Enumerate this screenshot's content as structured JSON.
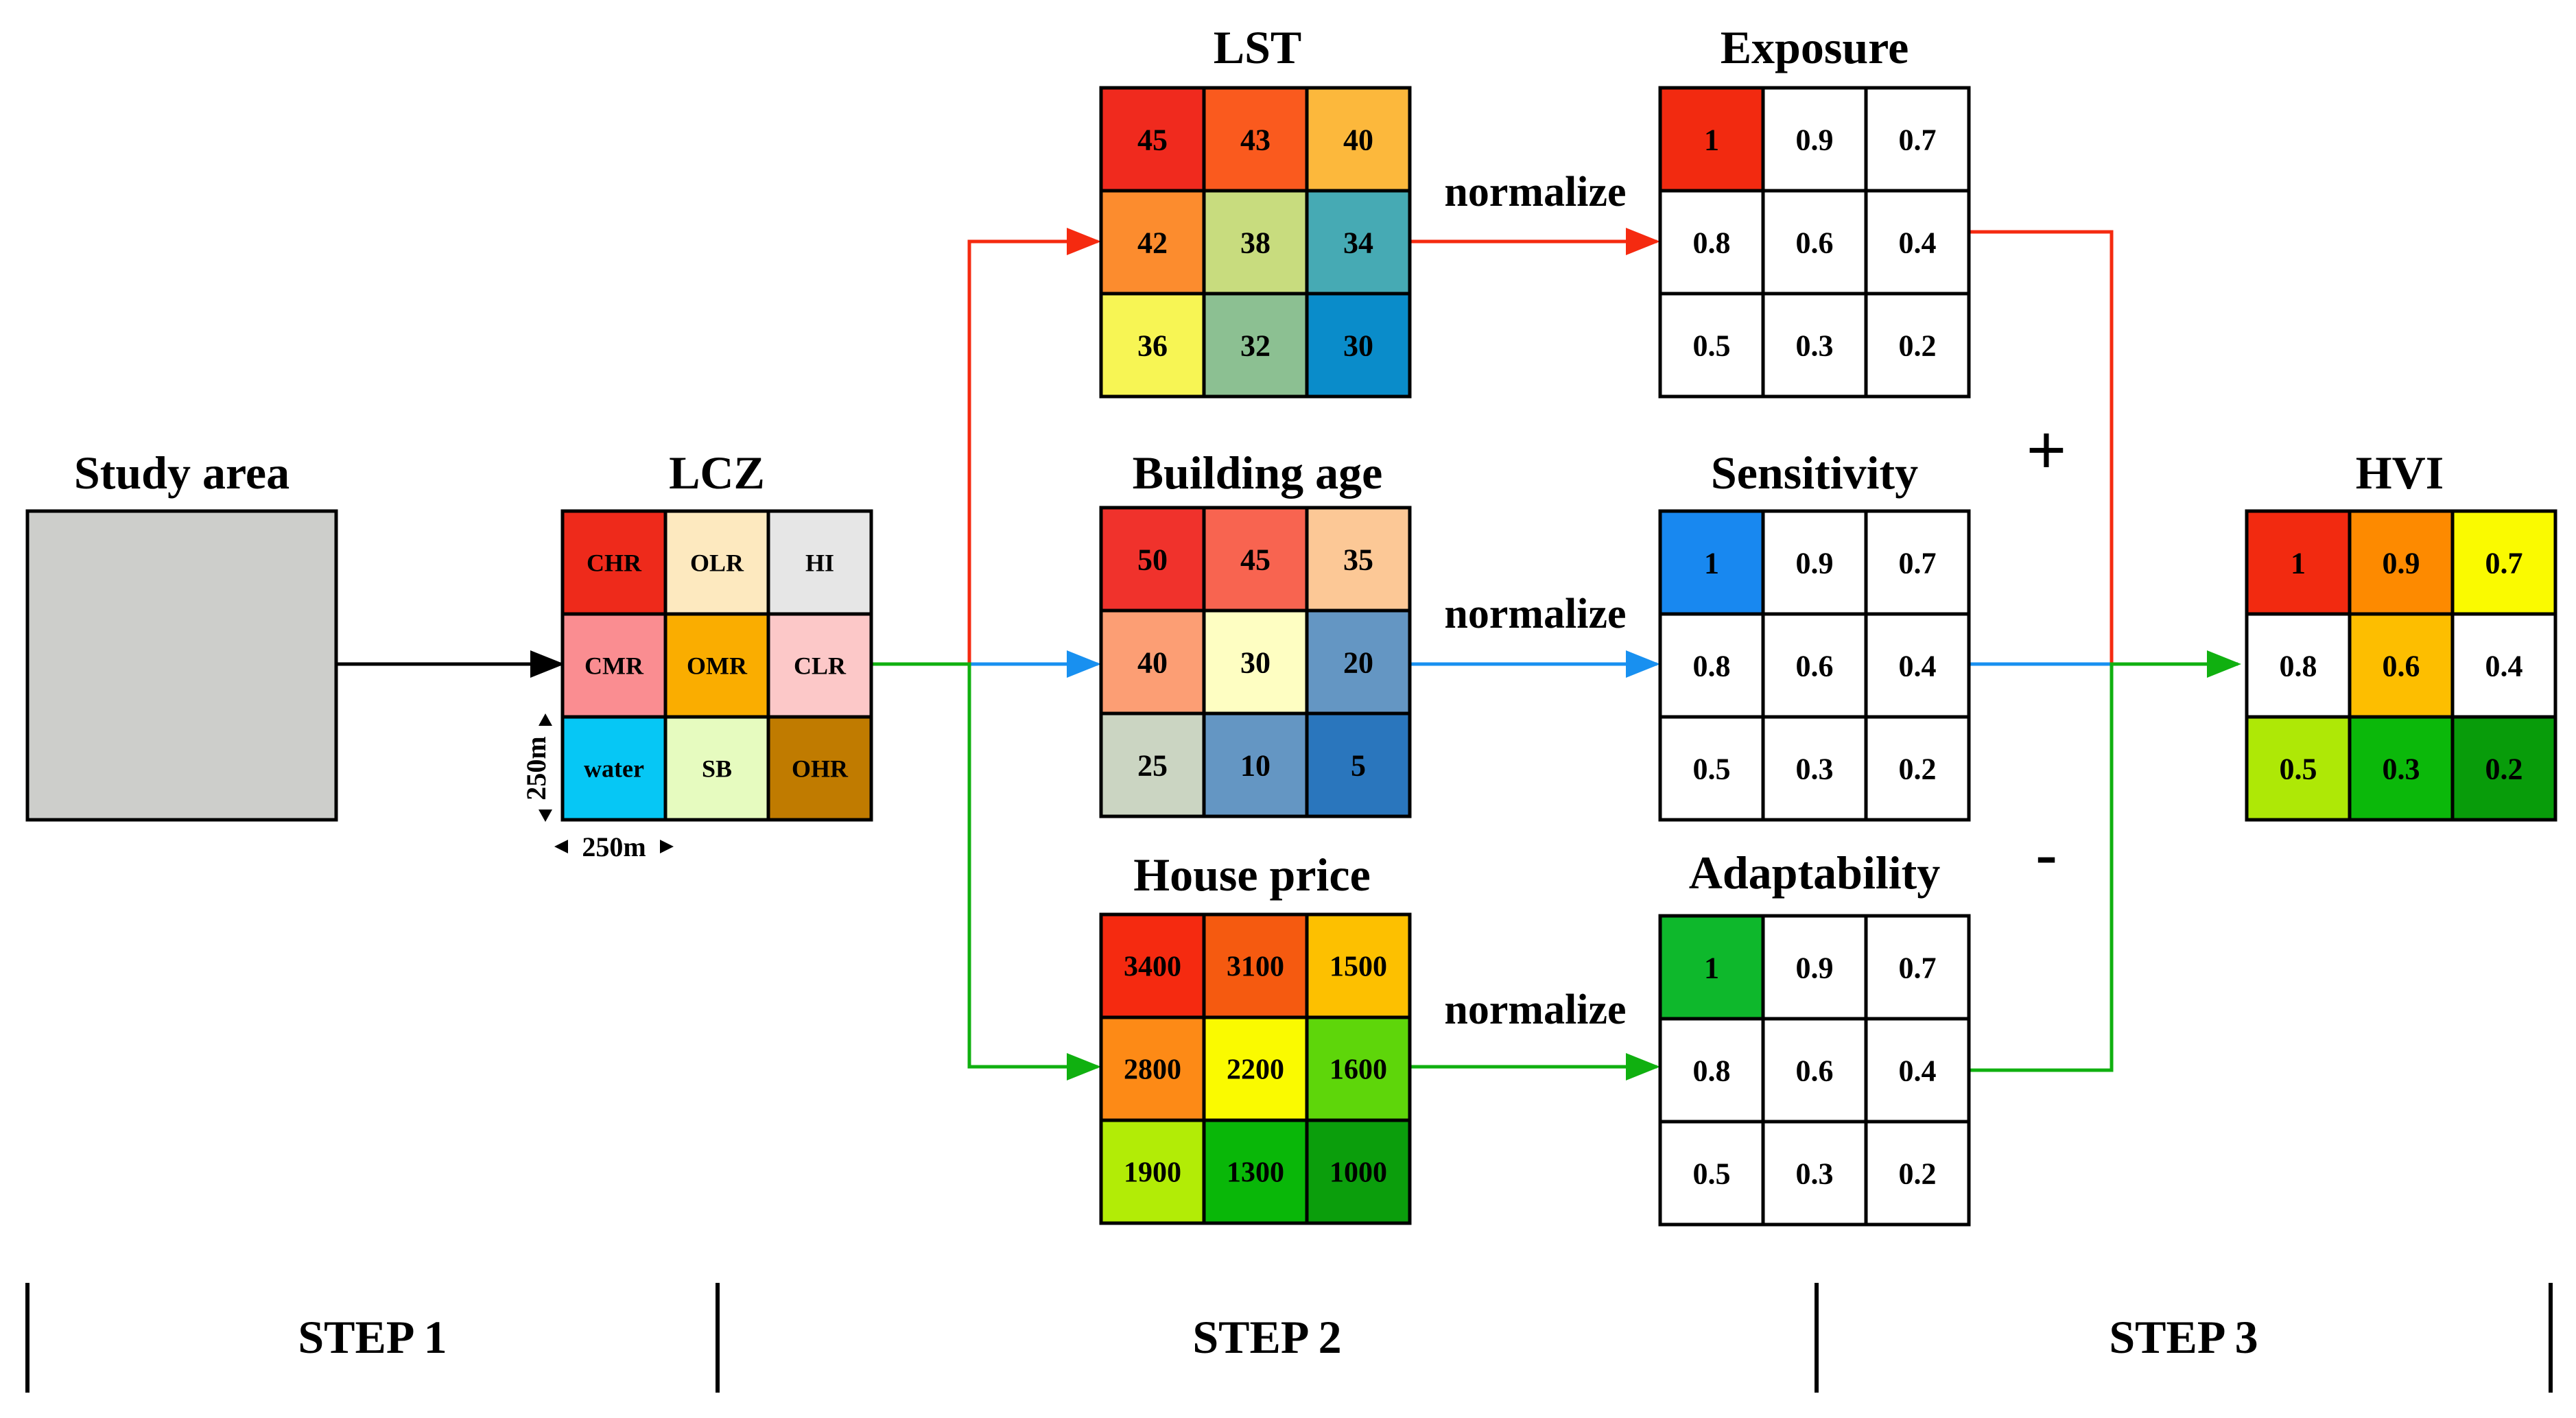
{
  "study_area": {
    "title": "Study area",
    "fill": "#cdcecb"
  },
  "lcz": {
    "title": "LCZ",
    "cells": [
      [
        "CHR",
        "OLR",
        "HI"
      ],
      [
        "CMR",
        "OMR",
        "CLR"
      ],
      [
        "water",
        "SB",
        "OHR"
      ]
    ],
    "colors": [
      [
        "#ee2a1b",
        "#fde9bf",
        "#e6e6e6"
      ],
      [
        "#fa8d91",
        "#faad00",
        "#fcc8c8"
      ],
      [
        "#06c7f5",
        "#e6fbbf",
        "#c07b00"
      ]
    ],
    "dim_vertical": "250m",
    "dim_horizontal": "250m"
  },
  "lst": {
    "title": "LST",
    "cells": [
      [
        "45",
        "43",
        "40"
      ],
      [
        "42",
        "38",
        "34"
      ],
      [
        "36",
        "32",
        "30"
      ]
    ],
    "colors": [
      [
        "#f02a1e",
        "#fa5a1e",
        "#fcb83c"
      ],
      [
        "#fc8c2e",
        "#c8dc7e",
        "#46aab4"
      ],
      [
        "#f7f554",
        "#8cc092",
        "#0a8cca"
      ]
    ]
  },
  "building_age": {
    "title": "Building age",
    "cells": [
      [
        "50",
        "45",
        "35"
      ],
      [
        "40",
        "30",
        "20"
      ],
      [
        "25",
        "10",
        "5"
      ]
    ],
    "colors": [
      [
        "#f0322c",
        "#f86450",
        "#fcc896"
      ],
      [
        "#fc9e74",
        "#fefec2",
        "#6496c3"
      ],
      [
        "#cbd5c2",
        "#6496c3",
        "#2a76bd"
      ]
    ]
  },
  "house_price": {
    "title": "House price",
    "cells": [
      [
        "3400",
        "3100",
        "1500"
      ],
      [
        "2800",
        "2200",
        "1600"
      ],
      [
        "1900",
        "1300",
        "1000"
      ]
    ],
    "colors": [
      [
        "#f52a10",
        "#f55a10",
        "#fdc000"
      ],
      [
        "#fd8a16",
        "#fafa00",
        "#5ed60a"
      ],
      [
        "#b2ec06",
        "#09b708",
        "#0b9e0c"
      ]
    ]
  },
  "exposure": {
    "title": "Exposure",
    "cells": [
      [
        "1",
        "0.9",
        "0.7"
      ],
      [
        "0.8",
        "0.6",
        "0.4"
      ],
      [
        "0.5",
        "0.3",
        "0.2"
      ]
    ],
    "highlight_color": "#f22a10"
  },
  "sensitivity": {
    "title": "Sensitivity",
    "cells": [
      [
        "1",
        "0.9",
        "0.7"
      ],
      [
        "0.8",
        "0.6",
        "0.4"
      ],
      [
        "0.5",
        "0.3",
        "0.2"
      ]
    ],
    "highlight_color": "#1888f0"
  },
  "adaptability": {
    "title": "Adaptability",
    "cells": [
      [
        "1",
        "0.9",
        "0.7"
      ],
      [
        "0.8",
        "0.6",
        "0.4"
      ],
      [
        "0.5",
        "0.3",
        "0.2"
      ]
    ],
    "highlight_color": "#0eb82c"
  },
  "hvi": {
    "title": "HVI",
    "cells": [
      [
        "1",
        "0.9",
        "0.7"
      ],
      [
        "0.8",
        "0.6",
        "0.4"
      ],
      [
        "0.5",
        "0.3",
        "0.2"
      ]
    ],
    "colors": [
      [
        "#f22a10",
        "#fd8a00",
        "#fafa00"
      ],
      [
        "#ffffff",
        "#fdbe00",
        "#ffffff"
      ],
      [
        "#aee806",
        "#0bb80a",
        "#089c0a"
      ]
    ]
  },
  "normalize_label": "normalize",
  "signs": {
    "plus": "+",
    "minus": "-"
  },
  "steps": [
    "STEP 1",
    "STEP 2",
    "STEP 3"
  ],
  "line_colors": {
    "exposure": "#f52a10",
    "sensitivity": "#1890f0",
    "adaptability": "#10b010",
    "main": "#000000"
  }
}
